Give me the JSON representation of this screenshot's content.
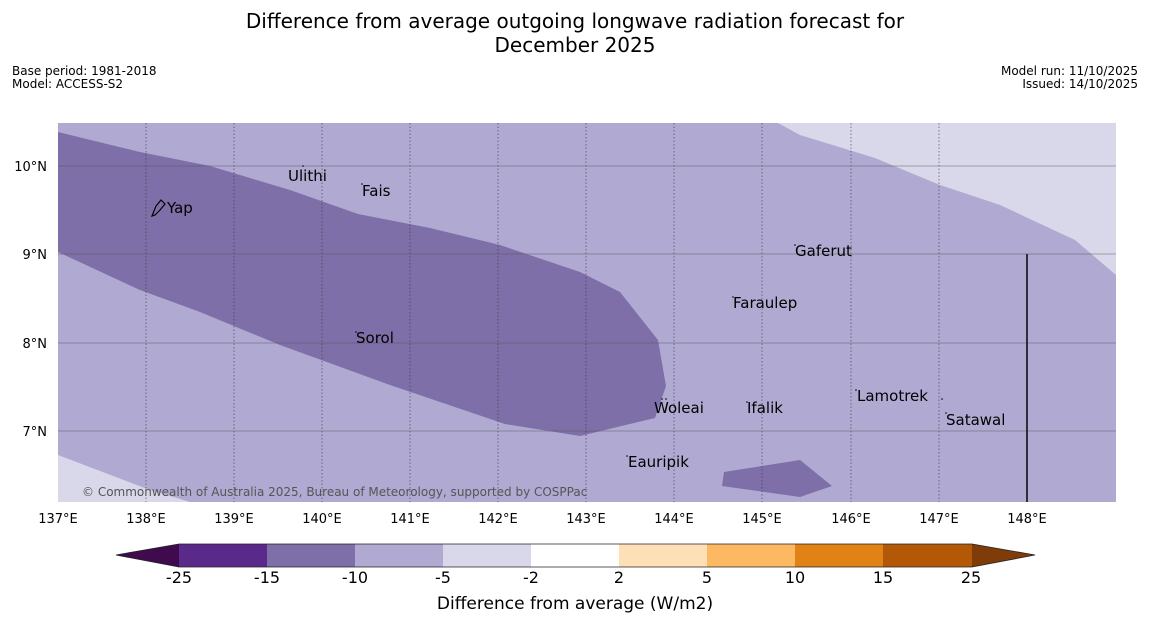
{
  "title": {
    "line1": "Difference from average outgoing longwave radiation forecast for",
    "line2": "December 2025"
  },
  "meta": {
    "base_period": "Base period: 1981-2018",
    "model": "Model: ACCESS-S2",
    "model_run": "Model run: 11/10/2025",
    "issued": "Issued: 14/10/2025"
  },
  "map": {
    "lon_labels": [
      "137°E",
      "138°E",
      "139°E",
      "140°E",
      "141°E",
      "142°E",
      "143°E",
      "144°E",
      "145°E",
      "146°E",
      "147°E",
      "148°E"
    ],
    "lat_labels": [
      "10°N",
      "9°N",
      "8°N",
      "7°N"
    ],
    "places": [
      "Ulithi",
      "Fais",
      "Yap",
      "Gaferut",
      "Faraulep",
      "Sorol",
      "Lamotrek",
      "Woleai",
      "Ifalik",
      "Satawal",
      "Eauripik"
    ],
    "copyright": "© Commonwealth of Australia 2025, Bureau of Meteorology, supported by COSPPac"
  },
  "colorbar": {
    "ticks": [
      "-25",
      "-15",
      "-10",
      "-5",
      "-2",
      "2",
      "5",
      "10",
      "15",
      "25"
    ],
    "colors": [
      "#3f0a4e",
      "#5a2a8a",
      "#7e6fa8",
      "#b0a9d1",
      "#d8d8ea",
      "#ffffff",
      "#fee0b6",
      "#fdb863",
      "#e08214",
      "#b35806",
      "#7f3b08"
    ],
    "label": "Difference from average (W/m2)"
  }
}
